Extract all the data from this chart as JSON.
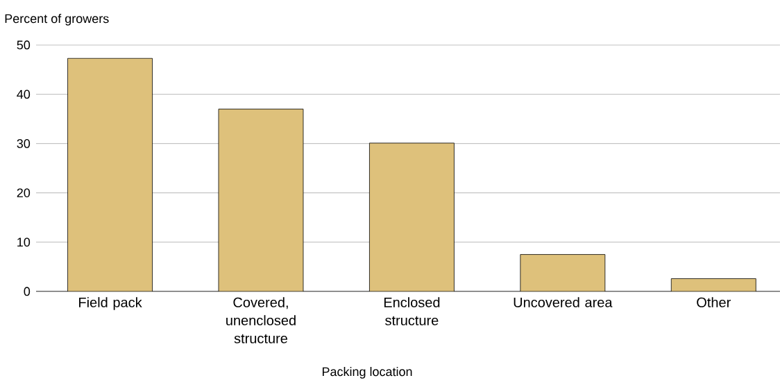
{
  "chart_data": {
    "type": "bar",
    "xlabel": "Packing location",
    "ylabel": "Percent of growers",
    "categories": [
      "Field pack",
      "Covered, unenclosed structure",
      "Enclosed structure",
      "Uncovered area",
      "Other"
    ],
    "values": [
      47.3,
      37.0,
      30.1,
      7.5,
      2.6
    ],
    "color": "#dec17b",
    "ylim": [
      0,
      50
    ],
    "yticks": [
      0,
      10,
      20,
      30,
      40,
      50
    ],
    "grid": "y"
  }
}
